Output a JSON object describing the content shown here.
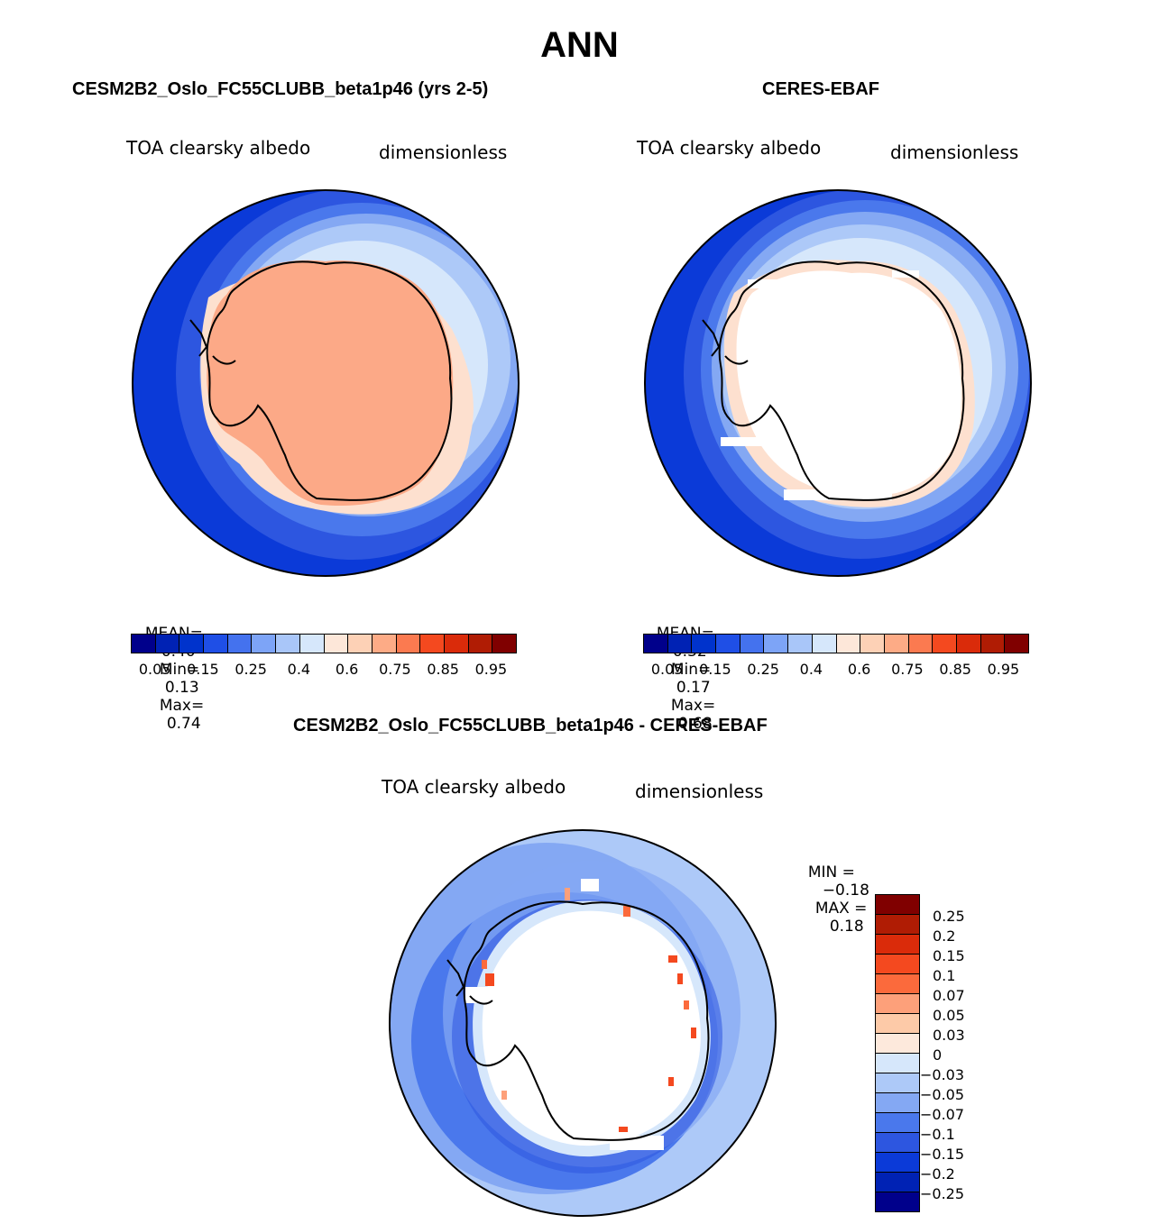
{
  "season": "ANN",
  "panels": {
    "model": {
      "title": "CESM2B2_Oslo_FC55CLUBB_beta1p46 (yrs 2-5)",
      "variable": "TOA clearsky albedo",
      "units": "dimensionless",
      "mean_label": "MEAN=",
      "mean_value": "0.40",
      "min_label": "Min=",
      "min_value": "0.13",
      "max_label": "Max=",
      "max_value": "0.74"
    },
    "obs": {
      "title": "CERES-EBAF",
      "variable": "TOA clearsky albedo",
      "units": "dimensionless",
      "mean_label": "MEAN=",
      "mean_value": "0.32",
      "min_label": "Min=",
      "min_value": "0.17",
      "max_label": "Max=",
      "max_value": "0.68"
    },
    "diff": {
      "title": "CESM2B2_Oslo_FC55CLUBB_beta1p46 - CERES-EBAF",
      "variable": "TOA clearsky albedo",
      "units": "dimensionless",
      "min_label": "MIN =",
      "min_value": "−0.18",
      "max_label": "MAX =",
      "max_value": "0.18"
    }
  },
  "colorbar_abs": {
    "colors": [
      "#00008b",
      "#0022b4",
      "#0033cc",
      "#1f4fe6",
      "#4472ee",
      "#7da4f7",
      "#a9c6f9",
      "#d6e7fb",
      "#fde7d9",
      "#fdd1b6",
      "#fdab86",
      "#fb7a50",
      "#f4491f",
      "#da2b0a",
      "#b01c04",
      "#800000"
    ],
    "tick_labels": [
      "0.05",
      "0.15",
      "0.25",
      "0.4",
      "0.6",
      "0.75",
      "0.85",
      "0.95"
    ]
  },
  "colorbar_diff": {
    "colors": [
      "#800000",
      "#b01c04",
      "#da2b0a",
      "#f4491f",
      "#fb6a3c",
      "#fda07a",
      "#fdcaa8",
      "#fde9dc",
      "#d6e7fb",
      "#adc9f8",
      "#84a8f3",
      "#4a78ec",
      "#2d56e0",
      "#0b3ad8",
      "#0022b4",
      "#00008b"
    ],
    "tick_labels": [
      "0.25",
      "0.2",
      "0.15",
      "0.1",
      "0.07",
      "0.05",
      "0.03",
      "0",
      "−0.03",
      "−0.05",
      "−0.07",
      "−0.1",
      "−0.15",
      "−0.2",
      "−0.25"
    ]
  }
}
